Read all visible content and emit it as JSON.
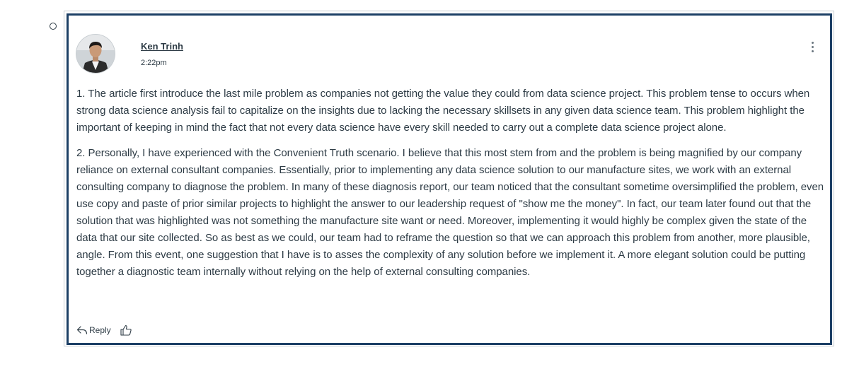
{
  "entry": {
    "author": "Ken Trinh",
    "timestamp": "2:22pm",
    "paragraphs": [
      "1. The article first introduce the last mile problem as companies not getting the value they could from data science project. This problem tense to occurs when strong data science analysis fail to capitalize on the insights due to lacking the necessary skillsets in any given data science team. This problem highlight the important of keeping in mind the fact that not every data science have every skill needed to carry out a complete data science project alone.",
      "2. Personally, I have experienced with the Convenient Truth scenario. I believe that this most stem from and the problem is being magnified by our company reliance on external consultant companies. Essentially, prior to implementing any data science solution to our manufacture sites, we work with an external consulting company to diagnose the problem. In many of these diagnosis report, our team noticed that the consultant sometime oversimplified the problem, even use copy and paste of prior similar projects to highlight the answer to our leadership request of \"show me the money\". In fact, our team later found out that the solution that was highlighted was not something the manufacture site want or need. Moreover, implementing it would highly be complex given the state of the data that our site collected. So as best as we could, our team had to reframe the question so that we can approach this problem from another, more plausible, angle. From this event, one suggestion that I have is to asses the complexity of any solution before we implement it. A more elegant solution could be putting together a diagnostic team internally without relying on the help of external consulting companies."
    ],
    "reply_label": "Reply"
  },
  "icons": {
    "options": "kebab-menu-icon",
    "reply": "reply-arrow-icon",
    "like": "thumbs-up-icon"
  },
  "colors": {
    "focus_border": "#1c3f65",
    "text": "#2d3b45"
  }
}
